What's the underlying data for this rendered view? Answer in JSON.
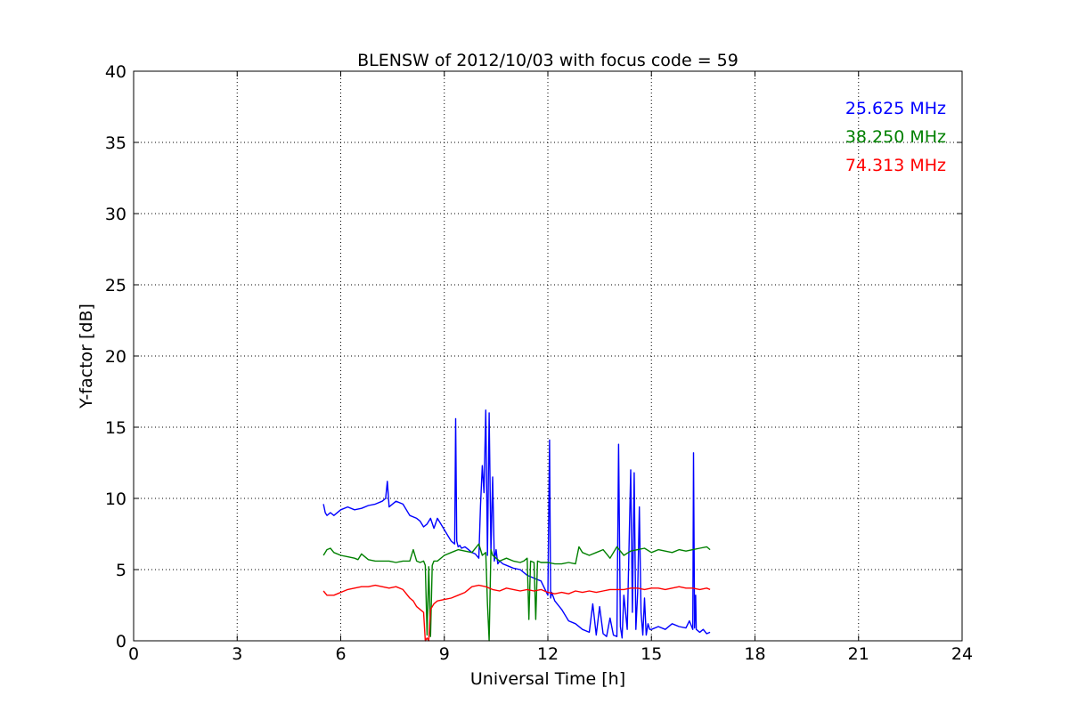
{
  "chart_data": {
    "type": "line",
    "title": "BLENSW of 2012/10/03 with focus code = 59",
    "xlabel": "Universal Time [h]",
    "ylabel": "Y-factor [dB]",
    "xlim": [
      0,
      24
    ],
    "ylim": [
      0,
      40
    ],
    "xticks": [
      0,
      3,
      6,
      9,
      12,
      15,
      18,
      21,
      24
    ],
    "yticks": [
      0,
      5,
      10,
      15,
      20,
      25,
      30,
      35,
      40
    ],
    "grid": true,
    "legend_position": "top-right",
    "series": [
      {
        "name": "25.625 MHz",
        "color": "#0000ff",
        "x": [
          5.5,
          5.55,
          5.6,
          5.7,
          5.8,
          6.0,
          6.2,
          6.4,
          6.6,
          6.8,
          7.0,
          7.2,
          7.3,
          7.35,
          7.4,
          7.6,
          7.8,
          8.0,
          8.2,
          8.3,
          8.4,
          8.5,
          8.6,
          8.7,
          8.8,
          8.9,
          9.0,
          9.1,
          9.2,
          9.3,
          9.33,
          9.36,
          9.4,
          9.45,
          9.5,
          9.6,
          9.7,
          9.8,
          9.9,
          10.0,
          10.05,
          10.1,
          10.15,
          10.2,
          10.25,
          10.3,
          10.35,
          10.4,
          10.45,
          10.5,
          10.55,
          10.6,
          10.7,
          10.8,
          10.9,
          11.0,
          11.2,
          11.4,
          11.6,
          11.8,
          12.0,
          12.05,
          12.08,
          12.11,
          12.2,
          12.4,
          12.6,
          12.8,
          13.0,
          13.2,
          13.3,
          13.4,
          13.5,
          13.6,
          13.7,
          13.8,
          13.9,
          14.0,
          14.05,
          14.1,
          14.15,
          14.2,
          14.3,
          14.4,
          14.45,
          14.5,
          14.55,
          14.6,
          14.65,
          14.7,
          14.75,
          14.8,
          14.85,
          14.9,
          14.95,
          15.0,
          15.2,
          15.4,
          15.6,
          15.8,
          16.0,
          16.1,
          16.2,
          16.22,
          16.25,
          16.28,
          16.3,
          16.4,
          16.5,
          16.6,
          16.7
        ],
        "y": [
          9.6,
          9.0,
          8.8,
          9.0,
          8.8,
          9.2,
          9.4,
          9.2,
          9.3,
          9.5,
          9.6,
          9.8,
          10.0,
          11.2,
          9.4,
          9.8,
          9.6,
          8.8,
          8.6,
          8.4,
          8.0,
          8.2,
          8.6,
          7.9,
          8.6,
          8.2,
          7.8,
          7.4,
          7.0,
          6.8,
          15.6,
          7.0,
          6.6,
          6.7,
          6.5,
          6.6,
          6.4,
          6.2,
          6.1,
          5.8,
          9.5,
          12.3,
          10.4,
          16.2,
          6.0,
          16.0,
          6.3,
          11.5,
          5.6,
          6.4,
          5.4,
          5.6,
          5.4,
          5.3,
          5.2,
          5.1,
          5.0,
          4.6,
          4.4,
          4.2,
          3.2,
          14.1,
          3.0,
          3.4,
          2.8,
          2.2,
          1.4,
          1.2,
          0.8,
          0.6,
          2.6,
          0.4,
          2.4,
          0.5,
          0.3,
          1.6,
          0.4,
          0.3,
          13.8,
          1.0,
          0.2,
          3.2,
          0.8,
          12.0,
          2.0,
          11.8,
          0.8,
          3.4,
          9.4,
          2.0,
          0.4,
          3.0,
          0.4,
          1.2,
          0.8,
          0.8,
          1.0,
          0.8,
          1.2,
          1.0,
          0.9,
          1.4,
          0.8,
          13.2,
          0.9,
          3.2,
          0.8,
          0.6,
          0.8,
          0.5,
          0.6
        ]
      },
      {
        "name": "38.250 MHz",
        "color": "#008000",
        "x": [
          5.5,
          5.6,
          5.7,
          5.8,
          6.0,
          6.2,
          6.4,
          6.5,
          6.6,
          6.8,
          7.0,
          7.2,
          7.4,
          7.6,
          7.8,
          8.0,
          8.1,
          8.2,
          8.3,
          8.4,
          8.45,
          8.5,
          8.55,
          8.6,
          8.65,
          8.7,
          8.8,
          9.0,
          9.2,
          9.4,
          9.6,
          9.8,
          10.0,
          10.1,
          10.2,
          10.25,
          10.3,
          10.35,
          10.4,
          10.5,
          10.6,
          10.8,
          11.0,
          11.2,
          11.3,
          11.4,
          11.45,
          11.5,
          11.6,
          11.65,
          11.7,
          11.8,
          12.0,
          12.2,
          12.4,
          12.6,
          12.8,
          12.9,
          13.0,
          13.2,
          13.4,
          13.6,
          13.8,
          14.0,
          14.2,
          14.4,
          14.6,
          14.8,
          15.0,
          15.2,
          15.4,
          15.6,
          15.8,
          16.0,
          16.2,
          16.4,
          16.6,
          16.7
        ],
        "y": [
          6.0,
          6.4,
          6.5,
          6.2,
          6.0,
          5.9,
          5.8,
          5.7,
          6.1,
          5.7,
          5.6,
          5.6,
          5.6,
          5.5,
          5.6,
          5.6,
          6.4,
          5.6,
          5.5,
          5.6,
          5.3,
          0.4,
          5.2,
          0.3,
          5.3,
          5.6,
          5.6,
          6.0,
          6.2,
          6.4,
          6.3,
          6.2,
          6.8,
          6.0,
          6.2,
          2.6,
          0.0,
          6.4,
          6.0,
          5.8,
          5.6,
          5.8,
          5.6,
          5.5,
          5.6,
          5.8,
          1.5,
          5.6,
          5.5,
          1.5,
          5.6,
          5.5,
          5.5,
          5.4,
          5.4,
          5.5,
          5.4,
          6.6,
          6.2,
          6.0,
          6.2,
          6.4,
          5.8,
          6.6,
          6.0,
          6.3,
          6.4,
          6.5,
          6.2,
          6.4,
          6.3,
          6.2,
          6.4,
          6.3,
          6.4,
          6.5,
          6.6,
          6.4
        ]
      },
      {
        "name": "74.313 MHz",
        "color": "#ff0000",
        "x": [
          5.5,
          5.6,
          5.8,
          6.0,
          6.2,
          6.4,
          6.6,
          6.8,
          7.0,
          7.2,
          7.4,
          7.6,
          7.8,
          8.0,
          8.1,
          8.2,
          8.3,
          8.4,
          8.45,
          8.5,
          8.55,
          8.6,
          8.65,
          8.7,
          8.8,
          9.0,
          9.2,
          9.4,
          9.6,
          9.8,
          10.0,
          10.2,
          10.4,
          10.6,
          10.8,
          11.0,
          11.2,
          11.4,
          11.6,
          11.8,
          12.0,
          12.2,
          12.4,
          12.6,
          12.8,
          13.0,
          13.2,
          13.4,
          13.6,
          13.8,
          14.0,
          14.2,
          14.4,
          14.6,
          14.8,
          15.0,
          15.2,
          15.4,
          15.6,
          15.8,
          16.0,
          16.2,
          16.4,
          16.6,
          16.7
        ],
        "y": [
          3.5,
          3.2,
          3.2,
          3.4,
          3.6,
          3.7,
          3.8,
          3.8,
          3.9,
          3.8,
          3.7,
          3.8,
          3.6,
          3.0,
          2.8,
          2.4,
          2.2,
          2.0,
          0.0,
          0.2,
          0.0,
          2.2,
          2.4,
          2.6,
          2.8,
          2.9,
          3.0,
          3.2,
          3.4,
          3.8,
          3.9,
          3.8,
          3.6,
          3.5,
          3.7,
          3.6,
          3.5,
          3.6,
          3.5,
          3.6,
          3.4,
          3.3,
          3.4,
          3.3,
          3.5,
          3.4,
          3.5,
          3.4,
          3.5,
          3.6,
          3.6,
          3.6,
          3.7,
          3.7,
          3.6,
          3.7,
          3.7,
          3.6,
          3.7,
          3.8,
          3.7,
          3.7,
          3.6,
          3.7,
          3.6
        ]
      }
    ]
  }
}
